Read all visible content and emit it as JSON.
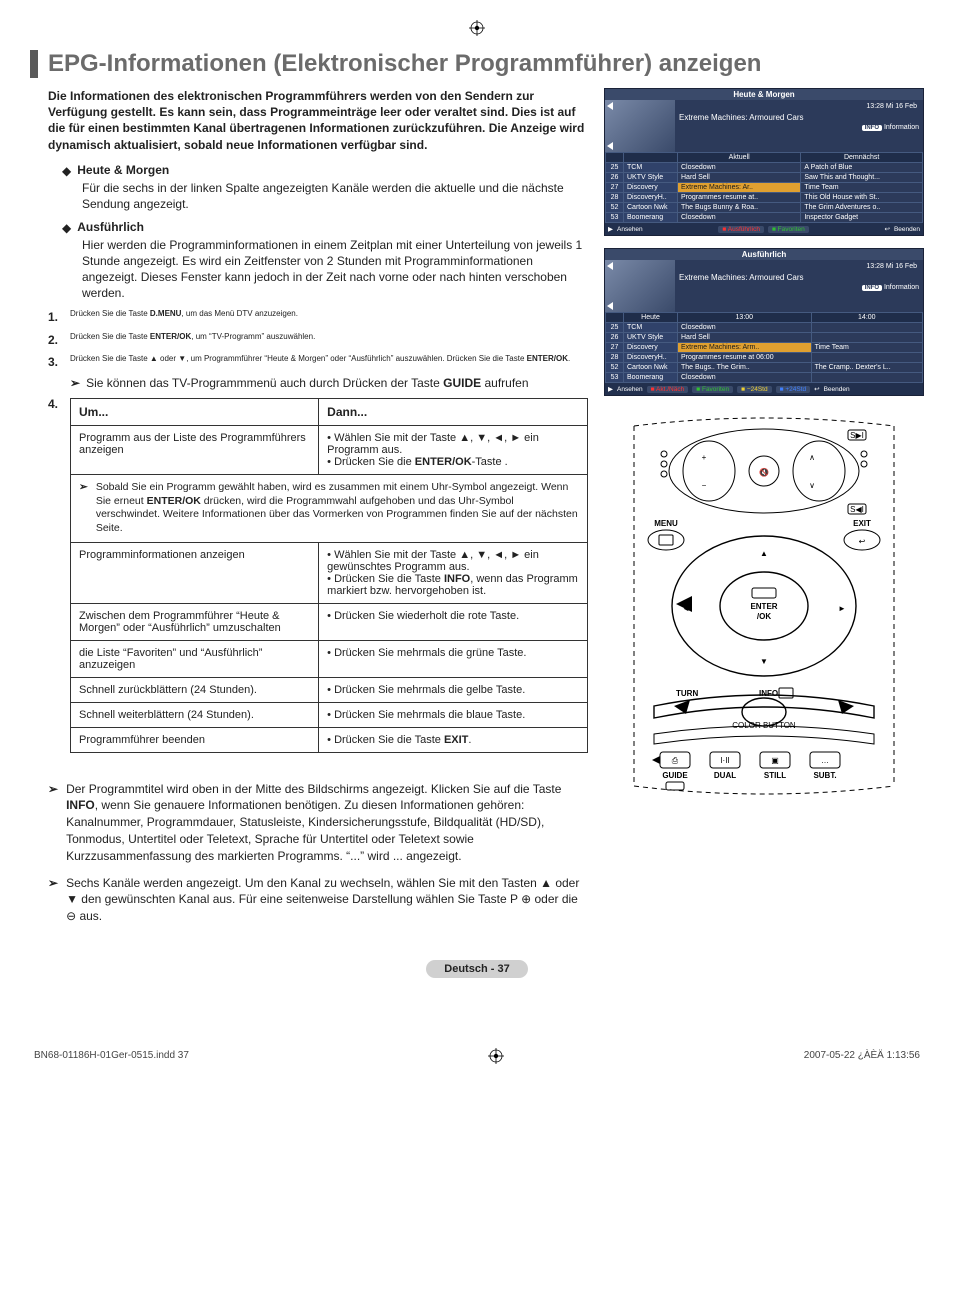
{
  "page": {
    "title": "EPG-Informationen (Elektronischer Programmführer) anzeigen",
    "intro": "Die Informationen des elektronischen Programmführers werden von den Sendern zur Verfügung gestellt. Es kann sein, dass Programmeinträge leer oder veraltet sind. Dies ist auf die für einen bestimmten Kanal übertragenen Informationen zurückzuführen. Die Anzeige wird dynamisch aktualisiert, sobald neue Informationen verfügbar sind.",
    "footer_badge": "Deutsch - 37"
  },
  "bullets": [
    {
      "title": "Heute & Morgen",
      "body": "Für die sechs in der linken Spalte angezeigten Kanäle werden die aktuelle und die nächste Sendung angezeigt."
    },
    {
      "title": "Ausführlich",
      "body": "Hier werden die Programminformationen in einem Zeitplan mit einer Unterteilung von jeweils 1 Stunde angezeigt. Es wird ein Zeitfenster von 2 Stunden mit Programminformationen angezeigt. Dieses Fenster kann jedoch in der Zeit nach vorne oder nach hinten verschoben werden."
    }
  ],
  "steps": [
    {
      "num": "1.",
      "text_before": "Drücken Sie die Taste ",
      "bold": "D.MENU",
      "text_after": ", um das Menü DTV anzuzeigen."
    },
    {
      "num": "2.",
      "text_before": "Drücken Sie die Taste ",
      "bold": "ENTER/OK",
      "text_after": ", um “TV-Programm” auszuwählen."
    },
    {
      "num": "3.",
      "text_before": "Drücken Sie die Taste ▲ oder ▼, um Programmführer “Heute & Morgen” oder “Ausführlich” auszuwählen. Drücken Sie die Taste ",
      "bold": "ENTER/OK",
      "text_after": "."
    }
  ],
  "sub_note": {
    "before": "Sie können das TV-Programmmenü auch durch Drücken der Taste ",
    "bold": "GUIDE",
    "after": " aufrufen"
  },
  "table": {
    "num": "4.",
    "head_left": "Um...",
    "head_right": "Dann...",
    "rows": [
      {
        "left": "Programm aus der Liste des Programmführers anzeigen",
        "right": [
          "Wählen Sie mit der Taste ▲, ▼, ◄, ► ein Programm aus.",
          "Drücken Sie die ENTER/OK-Taste ."
        ]
      }
    ],
    "note": {
      "before": "Sobald Sie ein Programm gewählt haben, wird es zusammen mit einem Uhr-Symbol angezeigt. Wenn Sie erneut ",
      "bold": "ENTER/OK",
      "after": " drücken, wird die Programmwahl aufgehoben und das Uhr-Symbol verschwindet. Weitere Informationen über das Vormerken von Programmen finden Sie auf der nächsten Seite."
    },
    "rows2": [
      {
        "left": "Programminformationen anzeigen",
        "right": [
          "Wählen Sie mit der Taste ▲, ▼, ◄, ► ein gewünschtes Programm aus.",
          "Drücken Sie die Taste INFO, wenn das Programm markiert bzw. hervorgehoben ist."
        ]
      },
      {
        "left": "Zwischen dem Programmführer “Heute & Morgen” oder “Ausführlich” umzuschalten",
        "right": [
          "Drücken Sie wiederholt die rote Taste."
        ]
      },
      {
        "left": "die Liste “Favoriten” und “Ausführlich” anzuzeigen",
        "right": [
          "Drücken Sie mehrmals die grüne Taste."
        ]
      },
      {
        "left": "Schnell zurückblättern (24 Stunden).",
        "right": [
          "Drücken Sie mehrmals die gelbe Taste."
        ]
      },
      {
        "left": "Schnell weiterblättern (24 Stunden).",
        "right": [
          "Drücken Sie mehrmals die blaue Taste."
        ]
      },
      {
        "left": "Programmführer beenden",
        "right": [
          "Drücken Sie die Taste EXIT."
        ]
      }
    ]
  },
  "bottom_notes": [
    "Der Programmtitel wird oben in der Mitte des Bildschirms angezeigt. Klicken Sie auf die Taste INFO, wenn Sie genauere Informationen benötigen. Zu diesen Informationen gehören: Kanalnummer, Programmdauer, Statusleiste, Kindersicherungsstufe, Bildqualität (HD/SD), Tonmodus, Untertitel oder Teletext, Sprache für Untertitel oder Teletext sowie Kurzzusammenfassung des markierten Programms. “...” wird ... angezeigt.",
    "Sechs Kanäle werden angezeigt. Um den Kanal zu wechseln, wählen Sie mit den Tasten ▲ oder ▼ den gewünschten Kanal aus. Für eine seitenweise Darstellung wählen Sie Taste P ⊕ oder die ⊖ aus."
  ],
  "epg1": {
    "title": "Heute & Morgen",
    "date": "13:28 Mi 16 Feb",
    "program": "Extreme Machines: Armoured Cars",
    "info_label": "Information",
    "cols": [
      "",
      "",
      "Aktuell",
      "Demnächst"
    ],
    "rows": [
      [
        "25",
        "TCM",
        "Closedown",
        "A Patch of Blue"
      ],
      [
        "26",
        "UKTV Style",
        "Hard Sell",
        "Saw This and Thought..."
      ],
      [
        "27",
        "Discovery",
        "Extreme Machines: Ar..",
        "Time Team"
      ],
      [
        "28",
        "DiscoveryH..",
        "Programmes resume at..",
        "This Old House with St.."
      ],
      [
        "52",
        "Cartoon Nwk",
        "The Bugs Bunny & Roa..",
        "The Grim Adventures o.."
      ],
      [
        "53",
        "Boomerang",
        "Closedown",
        "Inspector Gadget"
      ]
    ],
    "footer": [
      "Ansehen",
      "Ausführlich",
      "Favoriten",
      "Beenden"
    ]
  },
  "epg2": {
    "title": "Ausführlich",
    "date": "13:28 Mi 16 Feb",
    "program": "Extreme Machines: Armoured Cars",
    "info_label": "Information",
    "cols": [
      "",
      "Heute",
      "13:00",
      "14:00"
    ],
    "rows": [
      [
        "25",
        "TCM",
        "Closedown",
        ""
      ],
      [
        "26",
        "UKTV Style",
        "Hard Sell",
        ""
      ],
      [
        "27",
        "Discovery",
        "Extreme Machines: Arm..",
        "Time Team"
      ],
      [
        "28",
        "DiscoveryH..",
        "Programmes resume at 06:00",
        ""
      ],
      [
        "52",
        "Cartoon Nwk",
        "The Bugs..  The Grim..",
        "The Cramp..  Dexter's L.."
      ],
      [
        "53",
        "Boomerang",
        "Closedown",
        ""
      ]
    ],
    "footer": [
      "Ansehen",
      "Akt./Näch",
      "Favoriten",
      "−24Std",
      "+24Std",
      "Beenden"
    ]
  },
  "remote": {
    "labels": {
      "menu": "MENU",
      "exit": "EXIT",
      "enter": "ENTER\n/OK",
      "turn": "TURN",
      "info": "INFO",
      "guide": "GUIDE",
      "dual": "DUAL",
      "still": "STILL",
      "subt": "SUBT.",
      "color_row": "COLOR BUTTON"
    }
  },
  "print": {
    "left": "BN68-01186H-01Ger-0515.indd   37",
    "right": "2007-05-22   ¿ÀÈÄ 1:13:56"
  }
}
